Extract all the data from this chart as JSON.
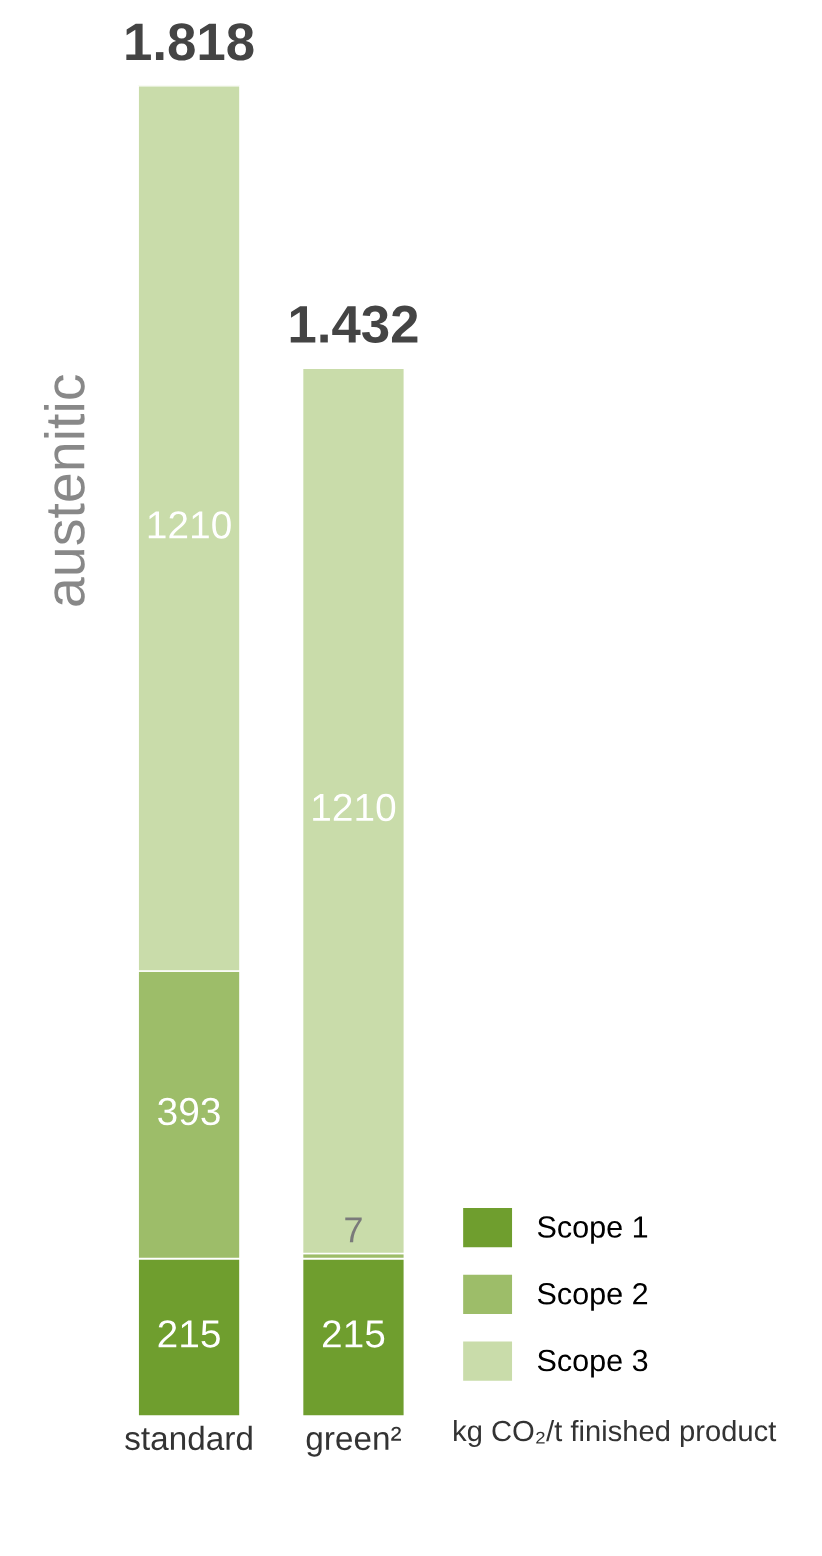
{
  "chart_data": {
    "type": "bar",
    "stacked": true,
    "categories": [
      "standard",
      "green²"
    ],
    "series": [
      {
        "name": "Scope 1",
        "color": "#6f9e2e",
        "values": [
          215,
          215
        ]
      },
      {
        "name": "Scope 2",
        "color": "#9dbd69",
        "values": [
          393,
          7
        ]
      },
      {
        "name": "Scope 3",
        "color": "#c9dcaa",
        "values": [
          1210,
          1210
        ]
      }
    ],
    "data_labels": true,
    "totals": [
      "1.818",
      "1.432"
    ],
    "legend": "bottom right",
    "tick_labels": "x",
    "grid": false,
    "annotations": [
      "austenitic",
      "kg CO₂/t finished product"
    ]
  }
}
